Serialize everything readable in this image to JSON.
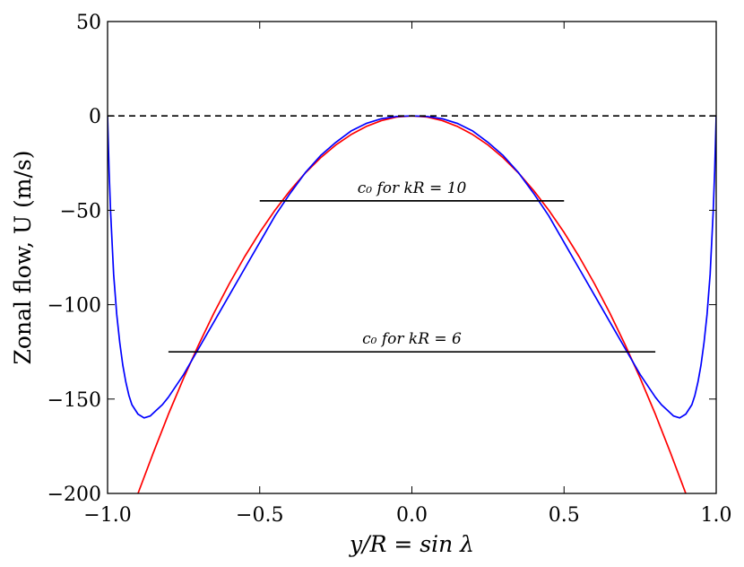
{
  "chart_data": {
    "type": "line",
    "xlabel": "y/R = sin λ",
    "ylabel": "Zonal flow, U (m/s)",
    "xlim": [
      -1.0,
      1.0
    ],
    "ylim": [
      -200,
      50
    ],
    "grid": false,
    "x_ticks": [
      -1.0,
      -0.5,
      0.0,
      0.5,
      1.0
    ],
    "x_tick_labels": [
      "−1.0",
      "−0.5",
      "0.0",
      "0.5",
      "1.0"
    ],
    "y_ticks": [
      50,
      0,
      -50,
      -100,
      -150,
      -200
    ],
    "y_tick_labels": [
      "50",
      "0",
      "−50",
      "−100",
      "−150",
      "−200"
    ],
    "series": [
      {
        "color": "#ff0000",
        "style": "solid",
        "x": [
          -0.9,
          -0.85,
          -0.8,
          -0.75,
          -0.7,
          -0.65,
          -0.6,
          -0.55,
          -0.5,
          -0.45,
          -0.4,
          -0.35,
          -0.3,
          -0.25,
          -0.2,
          -0.15,
          -0.1,
          -0.05,
          0.0,
          0.05,
          0.1,
          0.15,
          0.2,
          0.25,
          0.3,
          0.35,
          0.4,
          0.45,
          0.5,
          0.55,
          0.6,
          0.65,
          0.7,
          0.75,
          0.8,
          0.85,
          0.9
        ],
        "values": [
          -200,
          -178.6,
          -158.0,
          -138.9,
          -121.0,
          -104.3,
          -88.9,
          -74.7,
          -61.7,
          -50.0,
          -39.5,
          -30.2,
          -22.2,
          -15.4,
          -9.9,
          -5.6,
          -2.5,
          -0.6,
          0,
          -0.6,
          -2.5,
          -5.6,
          -9.9,
          -15.4,
          -22.2,
          -30.2,
          -39.5,
          -50.0,
          -61.7,
          -74.7,
          -88.9,
          -104.3,
          -121.0,
          -138.9,
          -158.0,
          -178.6,
          -200
        ]
      },
      {
        "color": "#0000ff",
        "style": "solid",
        "x": [
          -1.0,
          -0.995,
          -0.99,
          -0.98,
          -0.97,
          -0.96,
          -0.95,
          -0.94,
          -0.93,
          -0.92,
          -0.9,
          -0.88,
          -0.86,
          -0.84,
          -0.82,
          -0.8,
          -0.75,
          -0.7,
          -0.65,
          -0.6,
          -0.55,
          -0.5,
          -0.45,
          -0.4,
          -0.35,
          -0.3,
          -0.25,
          -0.2,
          -0.15,
          -0.1,
          -0.05,
          0.0,
          0.05,
          0.1,
          0.15,
          0.2,
          0.25,
          0.3,
          0.35,
          0.4,
          0.45,
          0.5,
          0.55,
          0.6,
          0.65,
          0.7,
          0.75,
          0.8,
          0.82,
          0.84,
          0.86,
          0.88,
          0.9,
          0.92,
          0.93,
          0.94,
          0.95,
          0.96,
          0.97,
          0.98,
          0.99,
          0.995,
          1.0
        ],
        "values": [
          0,
          -29,
          -51,
          -84,
          -105,
          -120,
          -132,
          -141,
          -148,
          -153,
          -158,
          -160,
          -159,
          -156,
          -153,
          -149,
          -137,
          -123,
          -109,
          -95,
          -81,
          -67,
          -53,
          -41,
          -30,
          -21,
          -14,
          -8,
          -4,
          -1.5,
          -0.3,
          0,
          -0.3,
          -1.5,
          -4,
          -8,
          -14,
          -21,
          -30,
          -41,
          -53,
          -67,
          -81,
          -95,
          -109,
          -123,
          -137,
          -149,
          -153,
          -156,
          -159,
          -160,
          -158,
          -153,
          -148,
          -141,
          -132,
          -120,
          -105,
          -84,
          -51,
          -29,
          0
        ]
      },
      {
        "color": "#000000",
        "style": "dashed",
        "x": [
          -1.0,
          1.0
        ],
        "values": [
          0,
          0
        ]
      },
      {
        "color": "#000000",
        "style": "solid",
        "x": [
          -0.5,
          0.5
        ],
        "values": [
          -45,
          -45
        ]
      },
      {
        "color": "#000000",
        "style": "solid",
        "x": [
          -0.8,
          0.8
        ],
        "values": [
          -125,
          -125
        ]
      }
    ],
    "annotations": [
      {
        "text": "c₀ for kR = 10",
        "x": 0.0,
        "y": -45
      },
      {
        "text": "c₀ for kR = 6",
        "x": 0.0,
        "y": -125
      }
    ]
  }
}
